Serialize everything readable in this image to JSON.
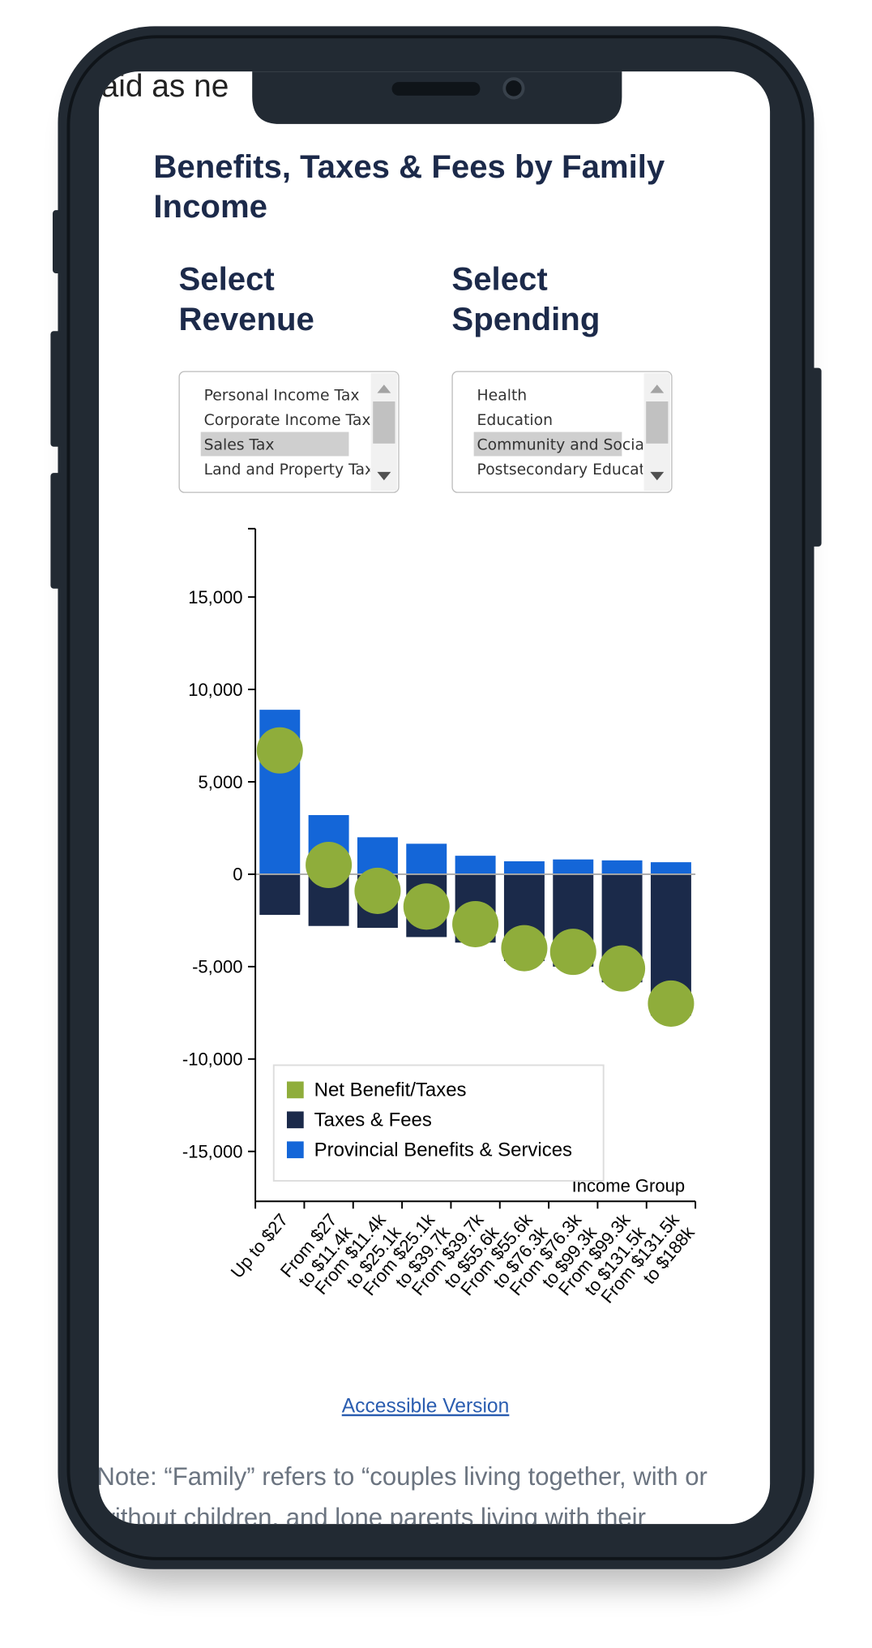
{
  "top_fragment": "aid as ne",
  "header": {
    "title": [
      "Benefits, Taxes & Fees by Family",
      "Income"
    ]
  },
  "revenue": {
    "label": [
      "Select",
      "Revenue"
    ],
    "options": [
      "Personal Income Tax",
      "Corporate Income Tax",
      "Sales Tax",
      "Land and Property Tax"
    ],
    "selected": 2
  },
  "spending": {
    "label": [
      "Select",
      "Spending"
    ],
    "options": [
      "Health",
      "Education",
      "Community and Socia",
      "Postsecondary Educat"
    ],
    "selected": 2
  },
  "chart_data": {
    "type": "bar",
    "stacked": true,
    "categories": [
      [
        "Up to $27"
      ],
      [
        "From $27",
        "to $11.4k"
      ],
      [
        "From $11.4k",
        "to $25.1k"
      ],
      [
        "From $25.1k",
        "to $39.7k"
      ],
      [
        "From $39.7k",
        "to $55.6k"
      ],
      [
        "From $55.6k",
        "to $76.3k"
      ],
      [
        "From $76.3k",
        "to $99.3k"
      ],
      [
        "From $99.3k",
        "to $131.5k"
      ],
      [
        "From $131.5k",
        "to $188k"
      ]
    ],
    "series": [
      {
        "name": "Net Benefit/Taxes",
        "type": "scatter",
        "color": "#8fad3b",
        "values": [
          6700,
          500,
          -900,
          -1750,
          -2700,
          -4000,
          -4200,
          -5100,
          -7000
        ]
      },
      {
        "name": "Taxes & Fees",
        "color": "#1b2a4a",
        "values": [
          -2200,
          -2800,
          -2900,
          -3400,
          -3700,
          -4700,
          -5000,
          -5850,
          -7650
        ]
      },
      {
        "name": "Provincial Benefits & Services",
        "color": "#1466d8",
        "values": [
          8900,
          3200,
          2000,
          1650,
          1000,
          700,
          800,
          750,
          650
        ]
      }
    ],
    "x_label": "Income Group",
    "ylim": [
      -17700,
      18700
    ],
    "yticks": [
      {
        "value": 15000,
        "label": "15,000"
      },
      {
        "value": 10000,
        "label": "10,000"
      },
      {
        "value": 5000,
        "label": "5,000"
      },
      0,
      {
        "value": -5000,
        "label": "-5,000"
      },
      {
        "value": -10000,
        "label": "-10,000"
      },
      {
        "value": -15000,
        "label": "-15,000"
      }
    ]
  },
  "link": "Accessible Version",
  "note": [
    "Note: “Family” refers to “couples living together, with or",
    "without children, and lone parents living with their"
  ]
}
